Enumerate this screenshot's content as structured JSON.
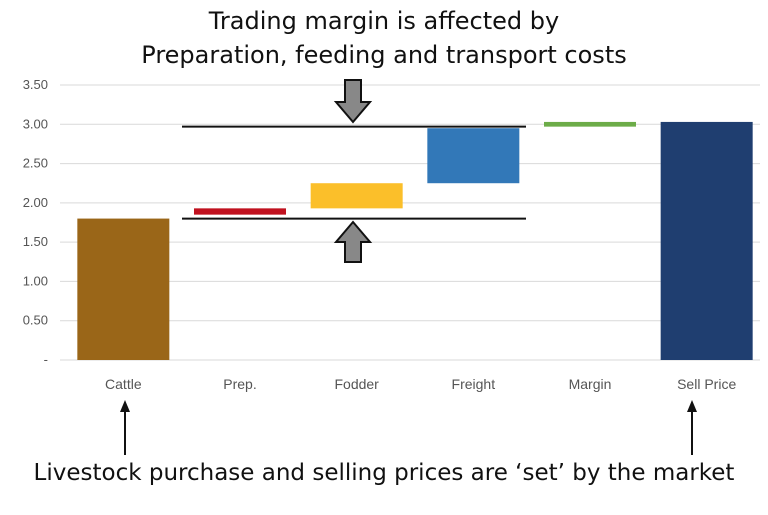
{
  "annotations": {
    "title_line1": "Trading margin is affected by",
    "title_line2": "Preparation, feeding and transport costs",
    "footer": "Livestock purchase and selling prices are ‘set’ by the market"
  },
  "chart_data": {
    "type": "bar",
    "subtype": "waterfall",
    "categories": [
      "Cattle",
      "Prep.",
      "Fodder",
      "Freight",
      "Margin",
      "Sell Price"
    ],
    "bars": [
      {
        "category": "Cattle",
        "base": 0,
        "top": 1.8,
        "color": "#9a6618"
      },
      {
        "category": "Prep.",
        "base": 1.85,
        "top": 1.93,
        "color": "#c0111f"
      },
      {
        "category": "Fodder",
        "base": 1.93,
        "top": 2.25,
        "color": "#fbbf2a"
      },
      {
        "category": "Freight",
        "base": 2.25,
        "top": 2.95,
        "color": "#3278b8"
      },
      {
        "category": "Margin",
        "base": 2.97,
        "top": 3.03,
        "color": "#6cac48"
      },
      {
        "category": "Sell Price",
        "base": 0,
        "top": 3.03,
        "color": "#1f3e70"
      }
    ],
    "ylim": [
      0,
      3.5
    ],
    "yticks": [
      {
        "value": 3.5,
        "label": "3.50"
      },
      {
        "value": 3.0,
        "label": "3.00"
      },
      {
        "value": 2.5,
        "label": "2.50"
      },
      {
        "value": 2.0,
        "label": "2.00"
      },
      {
        "value": 1.5,
        "label": "1.50"
      },
      {
        "value": 1.0,
        "label": "1.00"
      },
      {
        "value": 0.5,
        "label": "0.50"
      },
      {
        "value": 0,
        "label": "-"
      }
    ],
    "reference_lines": [
      2.97,
      1.8
    ],
    "grid": true
  }
}
